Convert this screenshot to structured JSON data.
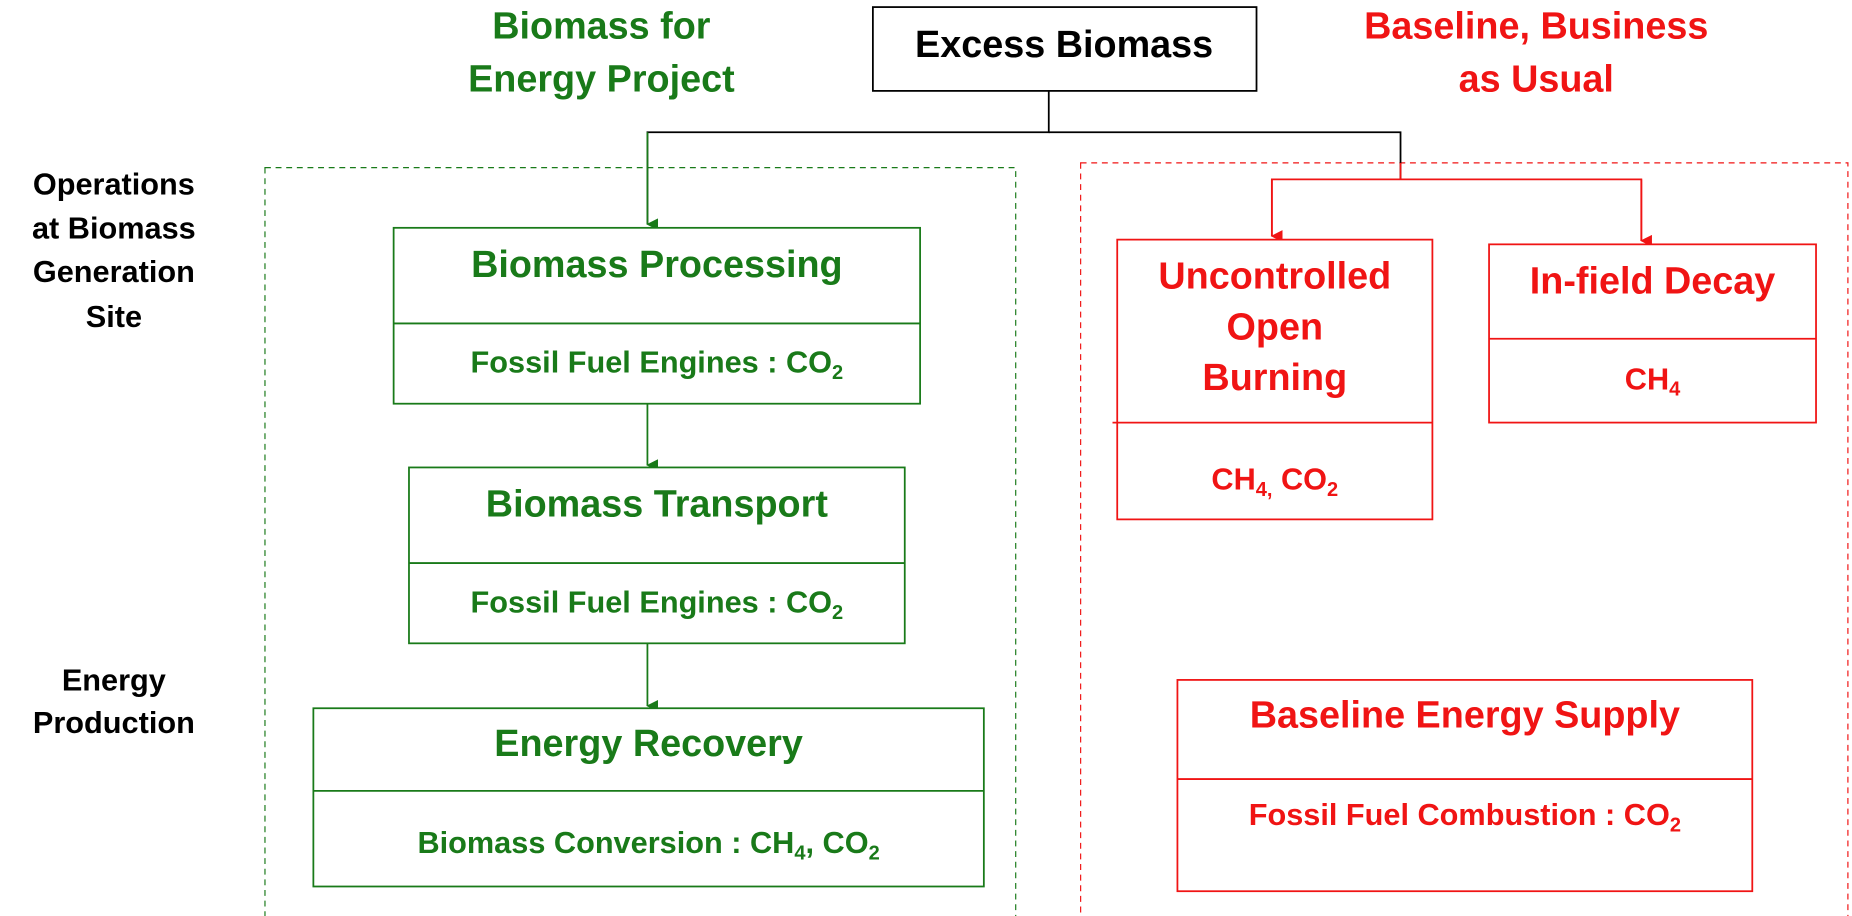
{
  "header": {
    "title": "Excess Biomass"
  },
  "project": {
    "heading": [
      "Biomass for",
      "Energy Project"
    ],
    "steps": [
      {
        "title": [
          "Biomass Processing"
        ],
        "detail": [
          "Fossil Fuel Engines : CO",
          "2"
        ]
      },
      {
        "title": [
          "Biomass Transport"
        ],
        "detail": [
          "Fossil Fuel Engines : CO",
          "2"
        ]
      },
      {
        "title": [
          "Energy Recovery"
        ],
        "detail": [
          "Biomass Conversion : CH",
          "4",
          ", CO",
          "2"
        ]
      }
    ]
  },
  "baseline": {
    "heading": [
      "Baseline, Business",
      "as Usual"
    ],
    "steps": [
      {
        "title": [
          "Uncontrolled",
          "Open",
          "Burning"
        ],
        "detail": [
          "CH",
          "4,",
          " CO",
          "2"
        ]
      },
      {
        "title": [
          "In-field Decay"
        ],
        "detail": [
          "CH",
          "4"
        ]
      },
      {
        "title": [
          "Baseline Energy Supply"
        ],
        "detail": [
          "Fossil Fuel Combustion : CO",
          "2"
        ]
      }
    ]
  },
  "side_labels": [
    [
      "Operations",
      "at Biomass",
      "Generation",
      "Site"
    ],
    [
      "Energy",
      "Production"
    ]
  ]
}
